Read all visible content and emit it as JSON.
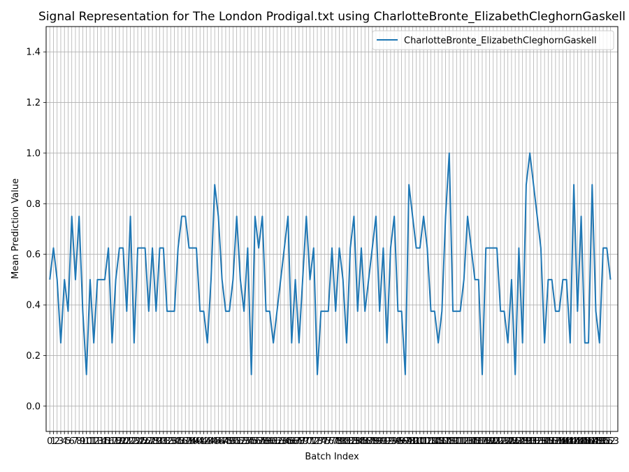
{
  "chart_data": {
    "type": "line",
    "title": "Signal Representation for The London Prodigal.txt using CharlotteBronte_ElizabethCleghornGaskell",
    "xlabel": "Batch Index",
    "ylabel": "Mean Prediction Value",
    "ylim": [
      -0.1,
      1.5
    ],
    "xlim": [
      -1,
      155
    ],
    "yticks": [
      0.0,
      0.2,
      0.4,
      0.6,
      0.8,
      1.0,
      1.2,
      1.4
    ],
    "ytick_labels": [
      "0.0",
      "0.2",
      "0.4",
      "0.6",
      "0.8",
      "1.0",
      "1.2",
      "1.4"
    ],
    "grid": true,
    "legend_position": "top-right",
    "color": "#1f77b4",
    "series": [
      {
        "name": "CharlotteBronte_ElizabethCleghornGaskell",
        "x": [
          0,
          1,
          2,
          3,
          4,
          5,
          6,
          7,
          8,
          9,
          10,
          11,
          12,
          13,
          14,
          15,
          16,
          17,
          18,
          19,
          20,
          21,
          22,
          23,
          24,
          25,
          26,
          27,
          28,
          29,
          30,
          31,
          32,
          33,
          34,
          35,
          36,
          37,
          38,
          39,
          40,
          41,
          42,
          43,
          44,
          45,
          46,
          47,
          48,
          49,
          50,
          51,
          52,
          53,
          54,
          55,
          56,
          57,
          58,
          59,
          60,
          61,
          62,
          63,
          64,
          65,
          66,
          67,
          68,
          69,
          70,
          71,
          72,
          73,
          74,
          75,
          76,
          77,
          78,
          79,
          80,
          81,
          82,
          83,
          84,
          85,
          86,
          87,
          88,
          89,
          90,
          91,
          92,
          93,
          94,
          95,
          96,
          97,
          98,
          99,
          100,
          101,
          102,
          103,
          104,
          105,
          106,
          107,
          108,
          109,
          110,
          111,
          112,
          113,
          114,
          115,
          116,
          117,
          118,
          119,
          120,
          121,
          122,
          123,
          124,
          125,
          126,
          127,
          128,
          129,
          130,
          131,
          132,
          133,
          134,
          135,
          136,
          137,
          138,
          139,
          140,
          141,
          142,
          143,
          144,
          145,
          146,
          147,
          148,
          149,
          150,
          151,
          152,
          153
        ],
        "values": [
          0.5,
          0.625,
          0.5,
          0.25,
          0.5,
          0.375,
          0.75,
          0.5,
          0.75,
          0.375,
          0.125,
          0.5,
          0.25,
          0.5,
          0.5,
          0.5,
          0.625,
          0.25,
          0.5,
          0.625,
          0.625,
          0.375,
          0.75,
          0.25,
          0.625,
          0.625,
          0.625,
          0.375,
          0.625,
          0.375,
          0.625,
          0.625,
          0.375,
          0.375,
          0.375,
          0.625,
          0.75,
          0.75,
          0.625,
          0.625,
          0.625,
          0.375,
          0.375,
          0.25,
          0.5,
          0.875,
          0.75,
          0.5,
          0.375,
          0.375,
          0.5,
          0.75,
          0.5,
          0.375,
          0.625,
          0.125,
          0.75,
          0.625,
          0.75,
          0.375,
          0.375,
          0.25,
          0.375,
          0.5,
          0.625,
          0.75,
          0.25,
          0.5,
          0.25,
          0.5,
          0.75,
          0.5,
          0.625,
          0.125,
          0.375,
          0.375,
          0.375,
          0.625,
          0.375,
          0.625,
          0.5,
          0.25,
          0.625,
          0.75,
          0.375,
          0.625,
          0.375,
          0.5,
          0.625,
          0.75,
          0.375,
          0.625,
          0.25,
          0.625,
          0.75,
          0.375,
          0.375,
          0.125,
          0.875,
          0.75,
          0.625,
          0.625,
          0.75,
          0.625,
          0.375,
          0.375,
          0.25,
          0.375,
          0.75,
          1.0,
          0.375,
          0.375,
          0.375,
          0.5,
          0.75,
          0.625,
          0.5,
          0.5,
          0.125,
          0.625,
          0.625,
          0.625,
          0.625,
          0.375,
          0.375,
          0.25,
          0.5,
          0.125,
          0.625,
          0.25,
          0.875,
          1.0,
          0.875,
          0.75,
          0.625,
          0.25,
          0.5,
          0.5,
          0.375,
          0.375,
          0.5,
          0.5,
          0.25,
          0.875,
          0.375,
          0.75,
          0.25,
          0.25,
          0.875,
          0.375,
          0.25,
          0.625,
          0.625,
          0.5
        ]
      }
    ]
  }
}
